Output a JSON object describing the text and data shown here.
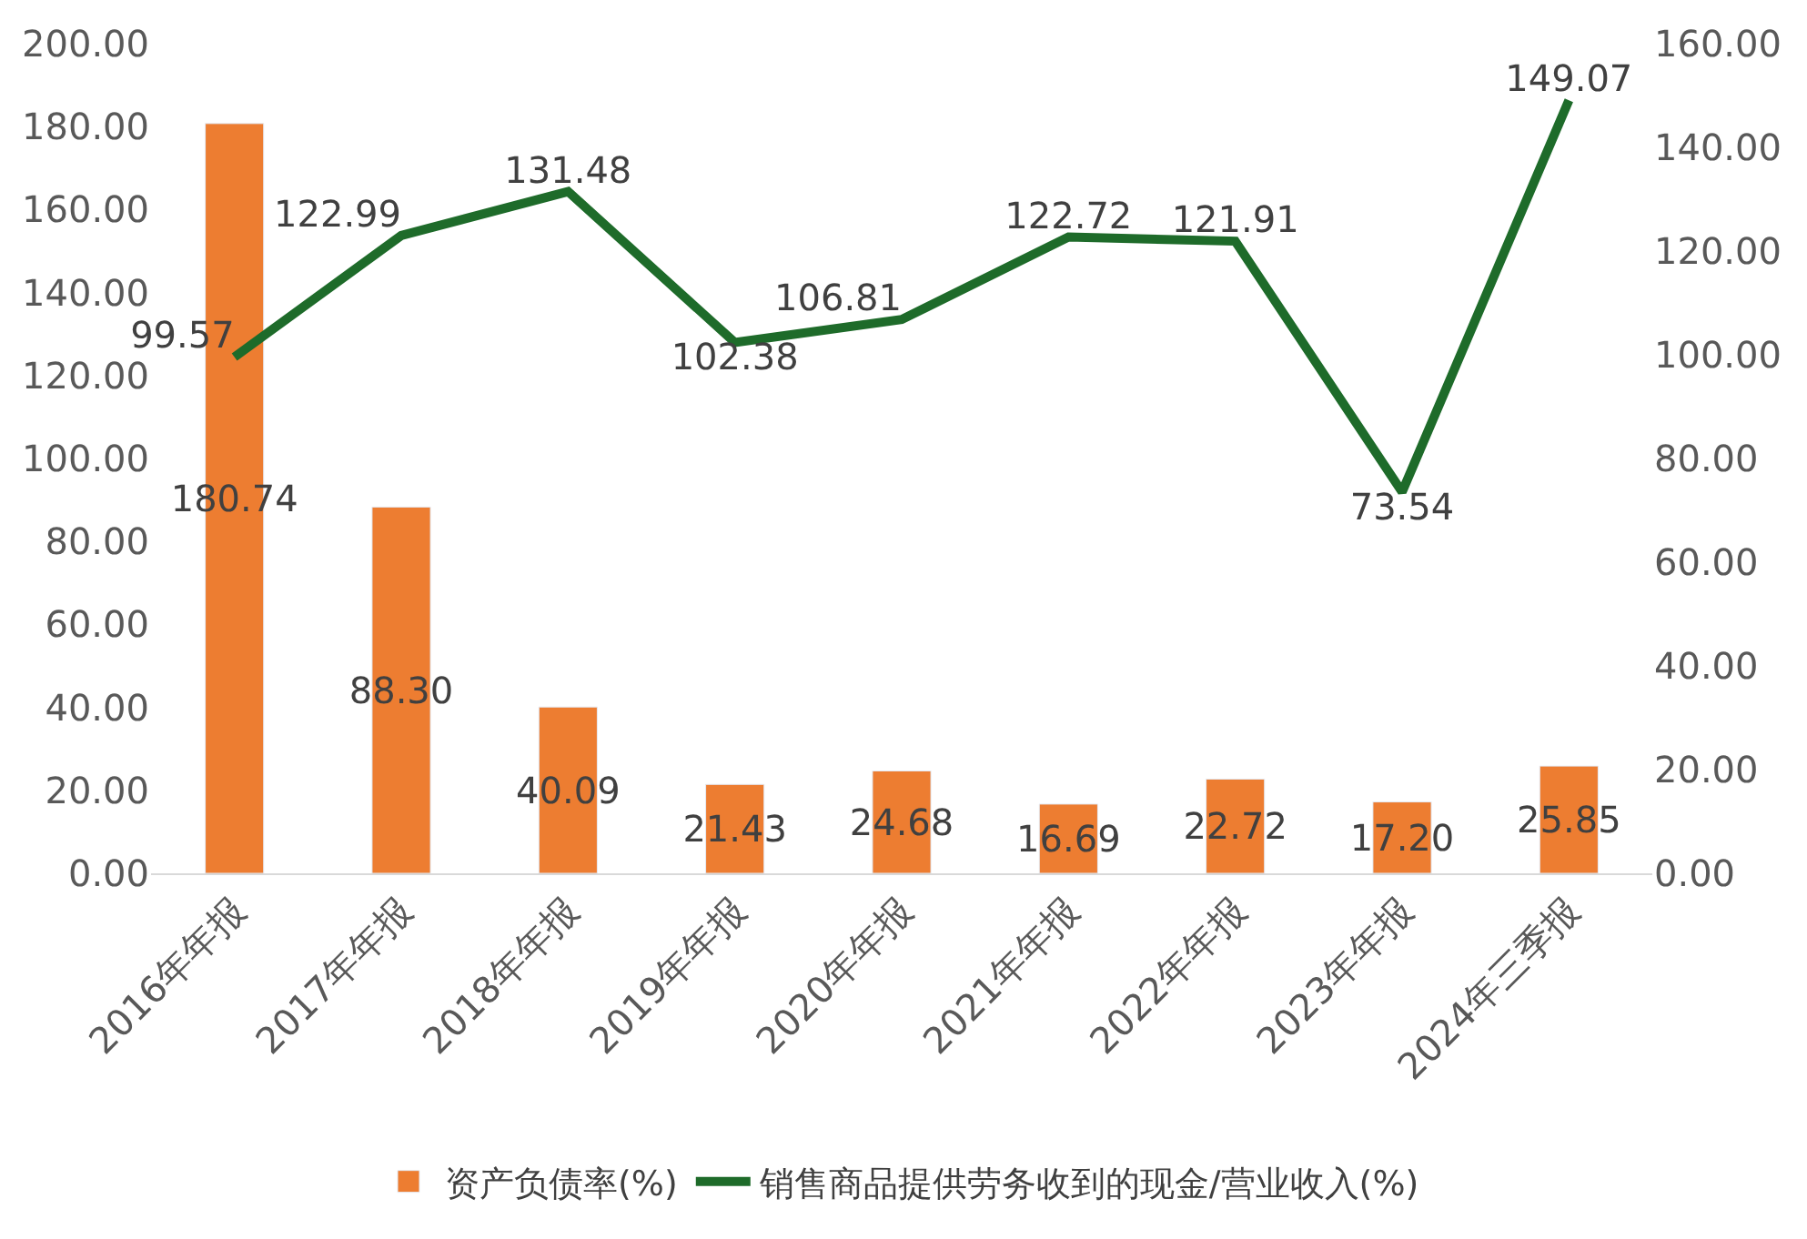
{
  "chart_data": {
    "type": "bar",
    "categories": [
      "2016年年报",
      "2017年年报",
      "2018年年报",
      "2019年年报",
      "2020年年报",
      "2021年年报",
      "2022年年报",
      "2023年年报",
      "2024年三季报"
    ],
    "series": [
      {
        "name": "资产负债率(%)",
        "color": "#ed7d31",
        "values": [
          180.74,
          88.3,
          40.09,
          21.43,
          24.68,
          16.69,
          22.72,
          17.2,
          25.85
        ],
        "value_labels": [
          "180.74",
          "88.30",
          "40.09",
          "21.43",
          "24.68",
          "16.69",
          "22.72",
          "17.20",
          "25.85"
        ]
      },
      {
        "name": "销售商品提供劳务收到的现金/营业收入(%)",
        "type": "line",
        "axis": "y2",
        "color": "#1e6b2a",
        "values": [
          99.57,
          122.99,
          131.48,
          102.38,
          106.81,
          122.72,
          121.91,
          73.54,
          149.07
        ],
        "value_labels": [
          "99.57",
          "122.99",
          "131.48",
          "102.38",
          "106.81",
          "122.72",
          "121.91",
          "73.54",
          "149.07"
        ]
      }
    ],
    "ylim": [
      0,
      200
    ],
    "yticks": [
      {
        "value": 0,
        "label": "0.00"
      },
      {
        "value": 20,
        "label": "20.00"
      },
      {
        "value": 40,
        "label": "40.00"
      },
      {
        "value": 60,
        "label": "60.00"
      },
      {
        "value": 80,
        "label": "80.00"
      },
      {
        "value": 100,
        "label": "100.00"
      },
      {
        "value": 120,
        "label": "120.00"
      },
      {
        "value": 140,
        "label": "140.00"
      },
      {
        "value": 160,
        "label": "160.00"
      },
      {
        "value": 180,
        "label": "180.00"
      },
      {
        "value": 200,
        "label": "200.00"
      }
    ],
    "y2lim": [
      0,
      160
    ],
    "y2ticks": [
      {
        "value": 0,
        "label": "0.00"
      },
      {
        "value": 20,
        "label": "20.00"
      },
      {
        "value": 40,
        "label": "40.00"
      },
      {
        "value": 60,
        "label": "60.00"
      },
      {
        "value": 80,
        "label": "80.00"
      },
      {
        "value": 100,
        "label": "100.00"
      },
      {
        "value": 120,
        "label": "120.00"
      },
      {
        "value": 140,
        "label": "140.00"
      },
      {
        "value": 160,
        "label": "160.00"
      }
    ],
    "data_labels": true,
    "legend": "bottom",
    "grid": false
  }
}
